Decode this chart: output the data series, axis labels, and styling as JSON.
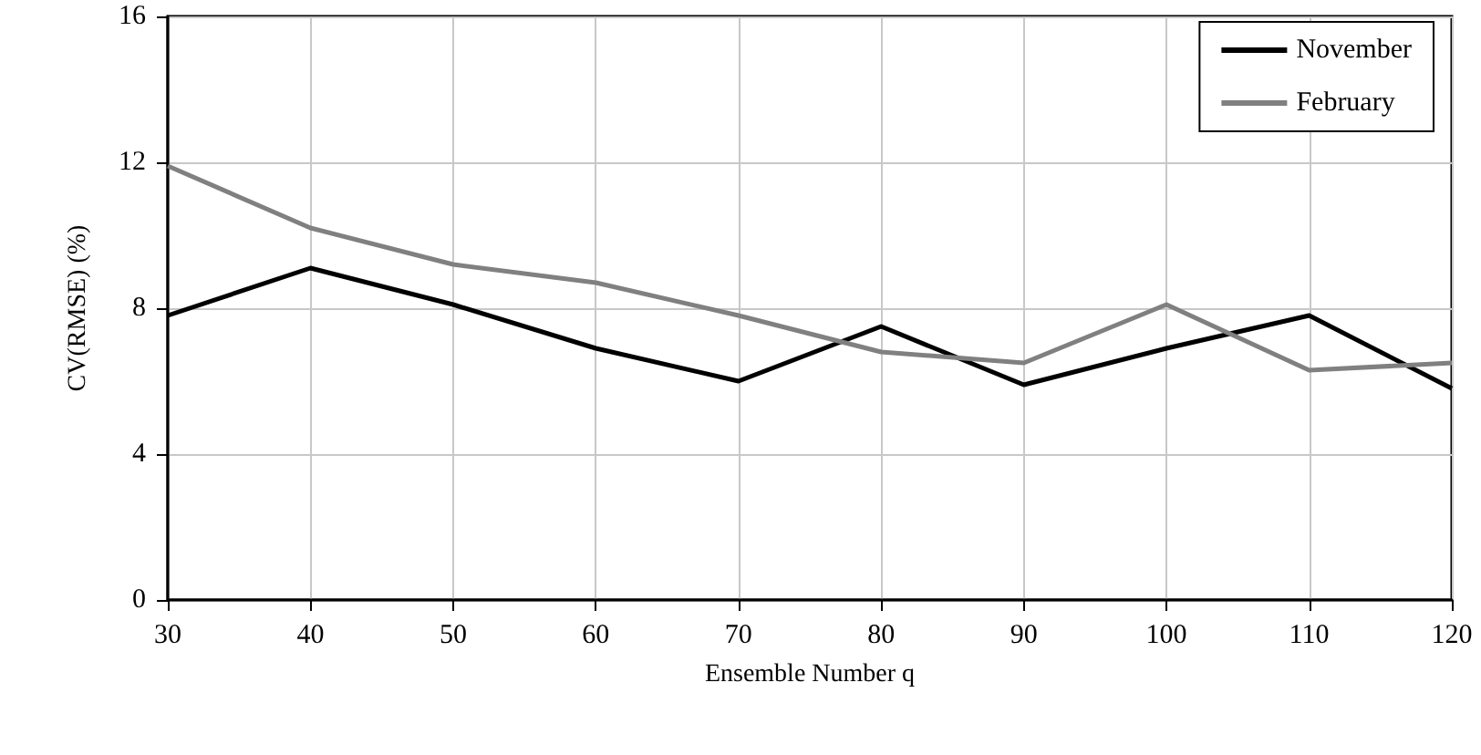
{
  "chart_data": {
    "type": "line",
    "xlabel": "Ensemble Number q",
    "ylabel": "CV(RMSE) (%)",
    "x": [
      30,
      40,
      50,
      60,
      70,
      80,
      90,
      100,
      110,
      120
    ],
    "series": [
      {
        "name": "November",
        "color": "#000000",
        "values": [
          7.8,
          9.1,
          8.1,
          6.9,
          6.0,
          7.5,
          5.9,
          6.9,
          7.8,
          5.8
        ]
      },
      {
        "name": "February",
        "color": "#808080",
        "values": [
          11.9,
          10.2,
          9.2,
          8.7,
          7.8,
          6.8,
          6.5,
          8.1,
          6.3,
          6.5
        ]
      }
    ],
    "xlim": [
      30,
      120
    ],
    "xticks": [
      30,
      40,
      50,
      60,
      70,
      80,
      90,
      100,
      110,
      120
    ],
    "ylim": [
      0,
      16
    ],
    "yticks": [
      0,
      4,
      8,
      12,
      16
    ],
    "grid": true,
    "legend": "top right",
    "marker": "none",
    "line_style": "solid"
  }
}
